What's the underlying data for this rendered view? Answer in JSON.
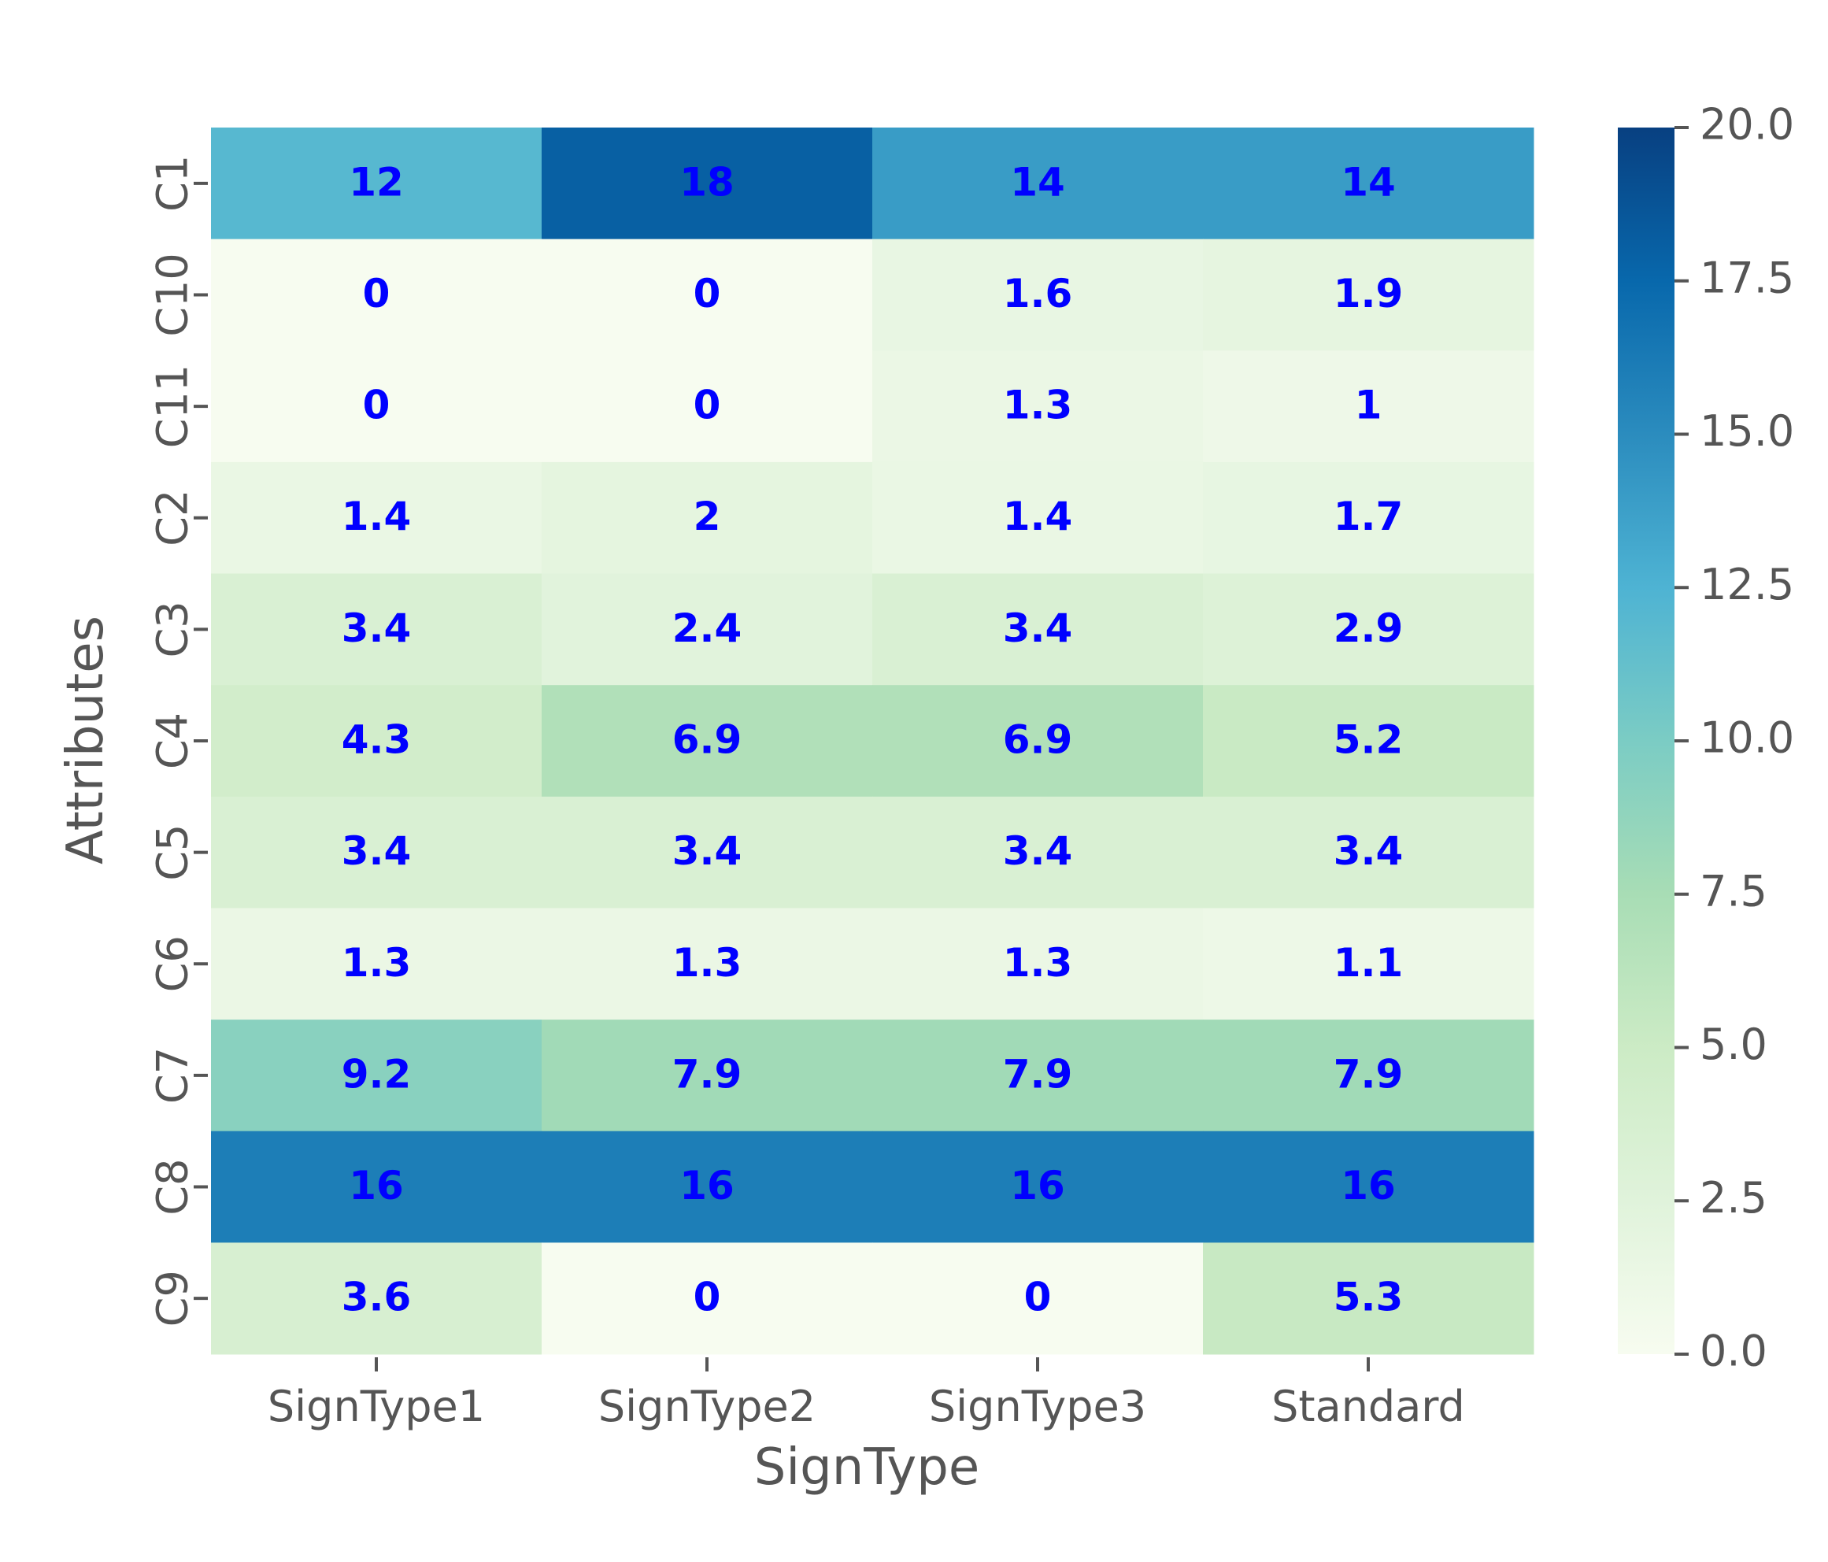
{
  "chart_data": {
    "type": "heatmap",
    "xlabel": "SignType",
    "ylabel": "Attributes",
    "x_categories": [
      "SignType1",
      "SignType2",
      "SignType3",
      "Standard"
    ],
    "y_categories": [
      "C1",
      "C10",
      "C11",
      "C2",
      "C3",
      "C4",
      "C5",
      "C6",
      "C7",
      "C8",
      "C9"
    ],
    "values": [
      [
        12,
        18,
        14,
        14
      ],
      [
        0,
        0,
        1.6,
        1.9
      ],
      [
        0,
        0,
        1.3,
        1
      ],
      [
        1.4,
        2,
        1.4,
        1.7
      ],
      [
        3.4,
        2.4,
        3.4,
        2.9
      ],
      [
        4.3,
        6.9,
        6.9,
        5.2
      ],
      [
        3.4,
        3.4,
        3.4,
        3.4
      ],
      [
        1.3,
        1.3,
        1.3,
        1.1
      ],
      [
        9.2,
        7.9,
        7.9,
        7.9
      ],
      [
        16,
        16,
        16,
        16
      ],
      [
        3.6,
        0,
        0,
        5.3
      ]
    ],
    "colorbar": {
      "range": [
        0,
        20
      ],
      "ticks": [
        "0.0",
        "2.5",
        "5.0",
        "7.5",
        "10.0",
        "12.5",
        "15.0",
        "17.5",
        "20.0"
      ],
      "colormap": "GnBu",
      "stops": [
        "#f7fcf0",
        "#e0f3db",
        "#ccebc5",
        "#a8ddb5",
        "#7bccc4",
        "#4eb3d3",
        "#2b8cbe",
        "#0868ac",
        "#084081"
      ]
    },
    "annotation_color": "#0000ff"
  }
}
